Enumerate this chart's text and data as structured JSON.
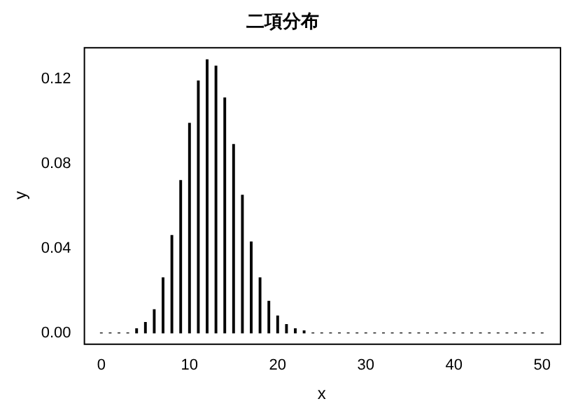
{
  "chart_data": {
    "type": "bar",
    "title": "二項分布",
    "xlabel": "x",
    "ylabel": "y",
    "color": "#000000",
    "x": [
      0,
      1,
      2,
      3,
      4,
      5,
      6,
      7,
      8,
      9,
      10,
      11,
      12,
      13,
      14,
      15,
      16,
      17,
      18,
      19,
      20,
      21,
      22,
      23,
      24,
      25,
      26,
      27,
      28,
      29,
      30,
      31,
      32,
      33,
      34,
      35,
      36,
      37,
      38,
      39,
      40,
      41,
      42,
      43,
      44,
      45,
      46,
      47,
      48,
      49,
      50
    ],
    "values": [
      0,
      0,
      0,
      0,
      0.002,
      0.005,
      0.011,
      0.026,
      0.046,
      0.072,
      0.099,
      0.119,
      0.129,
      0.126,
      0.111,
      0.089,
      0.065,
      0.043,
      0.026,
      0.015,
      0.008,
      0.004,
      0.002,
      0.001,
      0,
      0,
      0,
      0,
      0,
      0,
      0,
      0,
      0,
      0,
      0,
      0,
      0,
      0,
      0,
      0,
      0,
      0,
      0,
      0,
      0,
      0,
      0,
      0,
      0,
      0,
      0
    ],
    "xlim": [
      -2,
      52
    ],
    "xticks": [
      0,
      10,
      20,
      30,
      40,
      50
    ],
    "ylim": [
      -0.005,
      0.135
    ],
    "yticks": [
      {
        "value": 0,
        "label": "0.00"
      },
      {
        "value": 0.04,
        "label": "0.04"
      },
      {
        "value": 0.08,
        "label": "0.08"
      },
      {
        "value": 0.12,
        "label": "0.12"
      }
    ],
    "grid": false,
    "legend": false
  }
}
